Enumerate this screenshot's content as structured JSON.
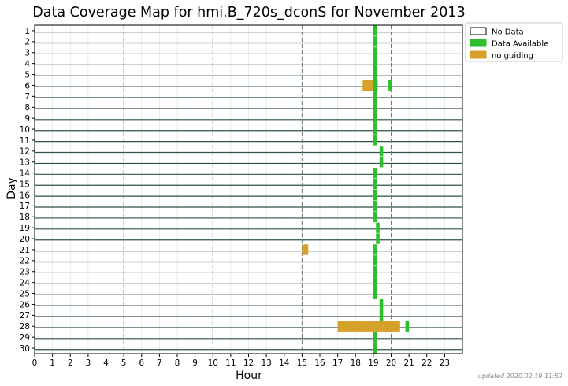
{
  "chart_data": {
    "type": "bar",
    "title": "Data Coverage Map for hmi.B_720s_dconS for November 2013",
    "xlabel": "Hour",
    "ylabel": "Day",
    "xlim": [
      0,
      24
    ],
    "ylim": [
      1,
      30
    ],
    "x_ticks": [
      0,
      1,
      2,
      3,
      4,
      5,
      6,
      7,
      8,
      9,
      10,
      11,
      12,
      13,
      14,
      15,
      16,
      17,
      18,
      19,
      20,
      21,
      22,
      23
    ],
    "y_ticks": [
      1,
      2,
      3,
      4,
      5,
      6,
      7,
      8,
      9,
      10,
      11,
      12,
      13,
      14,
      15,
      16,
      17,
      18,
      19,
      20,
      21,
      22,
      23,
      24,
      25,
      26,
      27,
      28,
      29,
      30
    ],
    "dashed_gridlines_x": [
      5,
      10,
      15,
      20
    ],
    "legend": {
      "placement": "top-right, outside plot",
      "entries": [
        {
          "label": "No Data",
          "color": "#ffffff"
        },
        {
          "label": "Data Available",
          "color": "#2bbf2b"
        },
        {
          "label": "no guiding",
          "color": "#d4a22a"
        }
      ]
    },
    "series": [
      {
        "name": "Data Available",
        "color": "#2bbf2b",
        "segments": [
          {
            "day": 1,
            "start": 19.0,
            "end": 19.2
          },
          {
            "day": 2,
            "start": 19.0,
            "end": 19.2
          },
          {
            "day": 3,
            "start": 19.0,
            "end": 19.2
          },
          {
            "day": 4,
            "start": 19.0,
            "end": 19.2
          },
          {
            "day": 5,
            "start": 19.0,
            "end": 19.2
          },
          {
            "day": 6,
            "start": 19.0,
            "end": 19.2
          },
          {
            "day": 6,
            "start": 19.85,
            "end": 20.05
          },
          {
            "day": 7,
            "start": 19.0,
            "end": 19.2
          },
          {
            "day": 8,
            "start": 19.0,
            "end": 19.2
          },
          {
            "day": 9,
            "start": 19.0,
            "end": 19.2
          },
          {
            "day": 10,
            "start": 19.0,
            "end": 19.2
          },
          {
            "day": 11,
            "start": 19.0,
            "end": 19.2
          },
          {
            "day": 12,
            "start": 19.35,
            "end": 19.55
          },
          {
            "day": 13,
            "start": 19.35,
            "end": 19.55
          },
          {
            "day": 14,
            "start": 19.0,
            "end": 19.2
          },
          {
            "day": 15,
            "start": 19.0,
            "end": 19.2
          },
          {
            "day": 16,
            "start": 19.0,
            "end": 19.2
          },
          {
            "day": 17,
            "start": 19.0,
            "end": 19.2
          },
          {
            "day": 18,
            "start": 19.0,
            "end": 19.2
          },
          {
            "day": 19,
            "start": 19.15,
            "end": 19.35
          },
          {
            "day": 20,
            "start": 19.15,
            "end": 19.35
          },
          {
            "day": 21,
            "start": 19.0,
            "end": 19.2
          },
          {
            "day": 22,
            "start": 19.0,
            "end": 19.2
          },
          {
            "day": 23,
            "start": 19.0,
            "end": 19.2
          },
          {
            "day": 24,
            "start": 19.0,
            "end": 19.2
          },
          {
            "day": 25,
            "start": 19.0,
            "end": 19.2
          },
          {
            "day": 26,
            "start": 19.35,
            "end": 19.55
          },
          {
            "day": 27,
            "start": 19.35,
            "end": 19.55
          },
          {
            "day": 28,
            "start": 20.8,
            "end": 21.0
          },
          {
            "day": 29,
            "start": 19.0,
            "end": 19.2
          },
          {
            "day": 30,
            "start": 19.0,
            "end": 19.2
          }
        ]
      },
      {
        "name": "no guiding",
        "color": "#d4a22a",
        "segments": [
          {
            "day": 6,
            "start": 18.4,
            "end": 19.25
          },
          {
            "day": 21,
            "start": 15.0,
            "end": 15.35
          },
          {
            "day": 28,
            "start": 17.0,
            "end": 20.5
          }
        ]
      }
    ],
    "annotation": "updated 2020.02.19 11:52"
  }
}
